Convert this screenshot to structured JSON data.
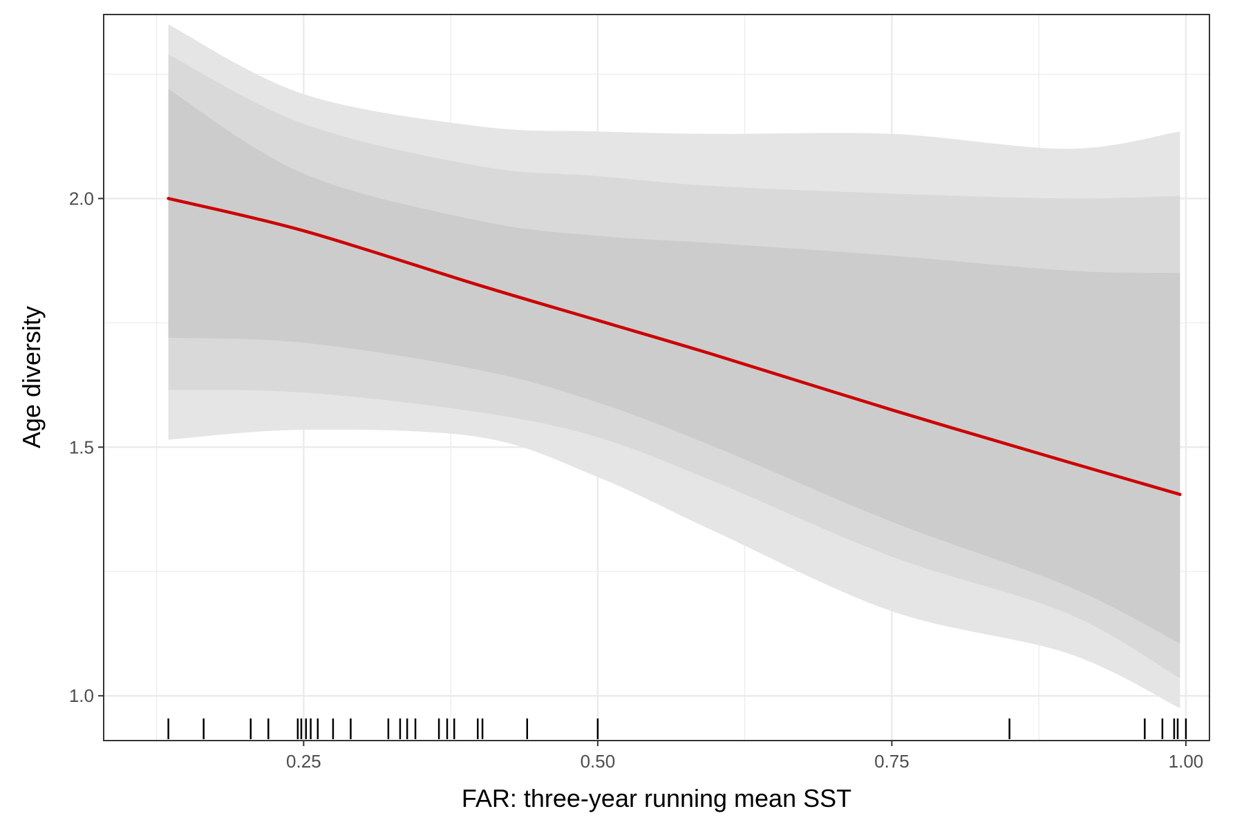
{
  "chart_data": {
    "type": "line",
    "xlabel": "FAR: three-year running mean SST",
    "ylabel": "Age diversity",
    "xlim": [
      0.08,
      1.02
    ],
    "ylim": [
      0.91,
      2.37
    ],
    "x_ticks": [
      0.25,
      0.5,
      0.75,
      1.0
    ],
    "x_tick_labels": [
      "0.25",
      "0.50",
      "0.75",
      "1.00"
    ],
    "y_ticks": [
      1.0,
      1.5,
      2.0
    ],
    "y_tick_labels": [
      "1.0",
      "1.5",
      "2.0"
    ],
    "grid": true,
    "legend": "none",
    "fit": {
      "x": [
        0.135,
        0.25,
        0.4,
        0.5,
        0.6,
        0.75,
        0.9,
        0.995
      ],
      "y": [
        2.0,
        1.935,
        1.825,
        1.755,
        1.685,
        1.575,
        1.47,
        1.405
      ],
      "color": "#cc0000"
    },
    "bands": [
      {
        "level": "outer",
        "color": "#e5e5e5",
        "x": [
          0.135,
          0.25,
          0.4,
          0.5,
          0.6,
          0.75,
          0.9,
          0.995
        ],
        "upper": [
          2.35,
          2.21,
          2.145,
          2.135,
          2.13,
          2.13,
          2.1,
          2.135
        ],
        "lower": [
          1.515,
          1.535,
          1.52,
          1.44,
          1.33,
          1.17,
          1.085,
          0.975
        ]
      },
      {
        "level": "middle",
        "color": "#d9d9d9",
        "x": [
          0.135,
          0.25,
          0.4,
          0.5,
          0.6,
          0.75,
          0.9,
          0.995
        ],
        "upper": [
          2.29,
          2.15,
          2.065,
          2.045,
          2.025,
          2.01,
          2.0,
          2.005
        ],
        "lower": [
          1.615,
          1.61,
          1.57,
          1.52,
          1.43,
          1.28,
          1.165,
          1.035
        ]
      },
      {
        "level": "inner",
        "color": "#cccccc",
        "x": [
          0.135,
          0.25,
          0.4,
          0.5,
          0.6,
          0.75,
          0.9,
          0.995
        ],
        "upper": [
          2.22,
          2.05,
          1.955,
          1.925,
          1.91,
          1.885,
          1.855,
          1.85
        ],
        "lower": [
          1.72,
          1.71,
          1.655,
          1.59,
          1.5,
          1.35,
          1.22,
          1.105
        ]
      }
    ],
    "rug": [
      0.135,
      0.165,
      0.205,
      0.22,
      0.245,
      0.248,
      0.252,
      0.256,
      0.262,
      0.275,
      0.29,
      0.322,
      0.332,
      0.338,
      0.345,
      0.365,
      0.372,
      0.378,
      0.398,
      0.402,
      0.44,
      0.5,
      0.85,
      0.965,
      0.98,
      0.99,
      0.993,
      1.0
    ]
  }
}
